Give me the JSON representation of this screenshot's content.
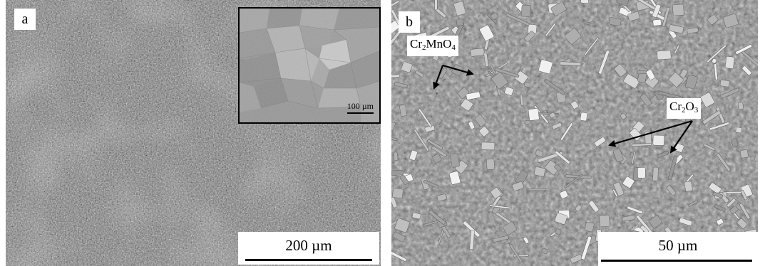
{
  "panel_a": {
    "label": "a",
    "scale_text": "200 µm",
    "inset_scale_text": "100 µm"
  },
  "panel_b": {
    "label": "b",
    "scale_text": "50 µm",
    "annotations": [
      {
        "id": "cr2mno4",
        "parts": [
          "Cr",
          "2",
          "MnO",
          "4"
        ]
      },
      {
        "id": "cr2o3",
        "parts": [
          "Cr",
          "2",
          "O",
          "3"
        ]
      }
    ]
  },
  "colors": {
    "background": "#ffffff",
    "sem_gray_a": "#7d7d7d",
    "sem_gray_b": "#8a8a8a",
    "inset_gray": "#9c9c9c",
    "annotation": "#000000"
  }
}
